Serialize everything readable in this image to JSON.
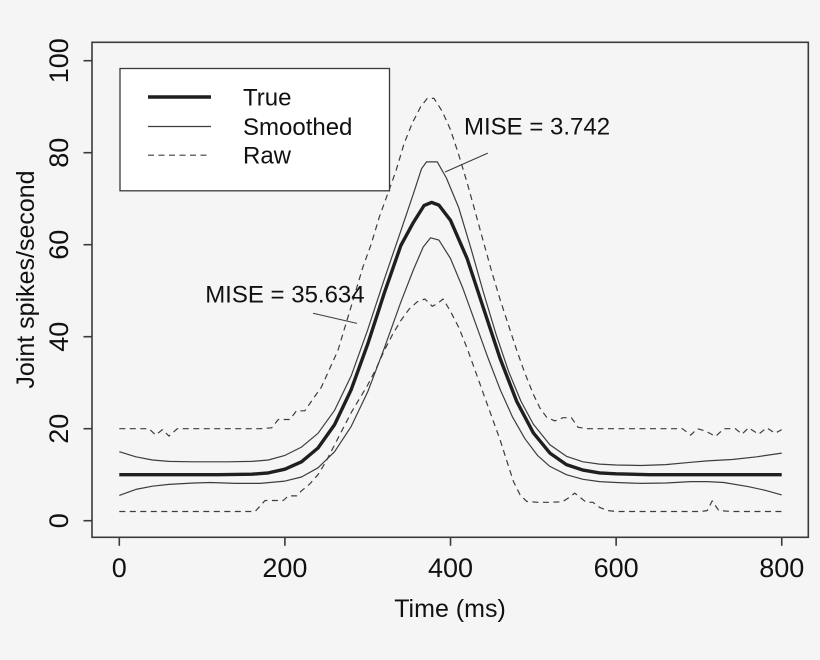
{
  "colors": {
    "background": "#f5f5f6",
    "legend_background": "#ffffff",
    "line_color": "#1f1f1f",
    "thin_line_color": "#3d3d3d",
    "border_color": "#3a3a3a",
    "text_color": "#111111"
  },
  "chart_data": {
    "type": "line",
    "title": "",
    "xlabel": "Time (ms)",
    "ylabel": "Joint spikes/second",
    "xlim": [
      0,
      800
    ],
    "ylim": [
      0,
      100
    ],
    "xticks": [
      0,
      200,
      400,
      600,
      800
    ],
    "yticks": [
      0,
      20,
      40,
      60,
      80,
      100
    ],
    "grid": false,
    "legend": {
      "position": "top-left",
      "entries": [
        {
          "label": "True",
          "style": "thick-solid"
        },
        {
          "label": "Smoothed",
          "style": "thin-solid"
        },
        {
          "label": "Raw",
          "style": "dashed"
        }
      ]
    },
    "series": [
      {
        "name": "true",
        "style": "thick-solid",
        "points": [
          [
            0,
            10
          ],
          [
            60,
            10
          ],
          [
            120,
            10
          ],
          [
            160,
            10.1
          ],
          [
            180,
            10.4
          ],
          [
            200,
            11.2
          ],
          [
            220,
            12.8
          ],
          [
            240,
            15.8
          ],
          [
            260,
            20.9
          ],
          [
            280,
            28.5
          ],
          [
            300,
            38.4
          ],
          [
            320,
            49.5
          ],
          [
            340,
            59.8
          ],
          [
            355,
            64.8
          ],
          [
            368,
            68.5
          ],
          [
            377,
            69.2
          ],
          [
            386,
            68.6
          ],
          [
            400,
            65.3
          ],
          [
            420,
            57
          ],
          [
            440,
            46.1
          ],
          [
            460,
            35.2
          ],
          [
            480,
            25.9
          ],
          [
            500,
            19.1
          ],
          [
            520,
            14.7
          ],
          [
            540,
            12.2
          ],
          [
            560,
            11
          ],
          [
            580,
            10.4
          ],
          [
            600,
            10.2
          ],
          [
            640,
            10
          ],
          [
            700,
            10
          ],
          [
            760,
            10
          ],
          [
            800,
            10
          ]
        ]
      },
      {
        "name": "smoothed-upper",
        "style": "thin-solid",
        "points": [
          [
            0,
            15
          ],
          [
            20,
            13.9
          ],
          [
            40,
            13.2
          ],
          [
            60,
            12.9
          ],
          [
            90,
            12.8
          ],
          [
            130,
            12.8
          ],
          [
            160,
            12.9
          ],
          [
            180,
            13.2
          ],
          [
            200,
            14.2
          ],
          [
            220,
            16
          ],
          [
            240,
            19
          ],
          [
            260,
            24
          ],
          [
            280,
            31.5
          ],
          [
            300,
            41.5
          ],
          [
            320,
            52.5
          ],
          [
            340,
            63
          ],
          [
            355,
            71
          ],
          [
            365,
            76.5
          ],
          [
            371,
            78
          ],
          [
            384,
            78
          ],
          [
            395,
            74.5
          ],
          [
            410,
            68
          ],
          [
            425,
            59
          ],
          [
            440,
            49.5
          ],
          [
            455,
            40.5
          ],
          [
            470,
            32.5
          ],
          [
            485,
            26
          ],
          [
            500,
            21
          ],
          [
            520,
            16.5
          ],
          [
            540,
            14
          ],
          [
            560,
            12.8
          ],
          [
            580,
            12.3
          ],
          [
            600,
            12.1
          ],
          [
            630,
            12
          ],
          [
            660,
            12.2
          ],
          [
            690,
            12.7
          ],
          [
            710,
            13
          ],
          [
            740,
            13.3
          ],
          [
            770,
            13.9
          ],
          [
            800,
            14.7
          ]
        ]
      },
      {
        "name": "smoothed-lower",
        "style": "thin-solid",
        "points": [
          [
            0,
            5.5
          ],
          [
            20,
            6.8
          ],
          [
            40,
            7.5
          ],
          [
            60,
            7.9
          ],
          [
            90,
            8.2
          ],
          [
            110,
            8.3
          ],
          [
            140,
            8.1
          ],
          [
            170,
            8.1
          ],
          [
            200,
            8.6
          ],
          [
            220,
            9.5
          ],
          [
            240,
            11.5
          ],
          [
            260,
            15
          ],
          [
            280,
            20.5
          ],
          [
            300,
            28
          ],
          [
            320,
            37.5
          ],
          [
            340,
            47.5
          ],
          [
            355,
            54.5
          ],
          [
            367,
            59.5
          ],
          [
            376,
            61.5
          ],
          [
            386,
            61
          ],
          [
            400,
            57
          ],
          [
            415,
            50.5
          ],
          [
            430,
            43
          ],
          [
            445,
            35.5
          ],
          [
            460,
            28.5
          ],
          [
            475,
            22.5
          ],
          [
            490,
            17.8
          ],
          [
            505,
            14.2
          ],
          [
            520,
            11.8
          ],
          [
            540,
            10
          ],
          [
            560,
            9
          ],
          [
            580,
            8.5
          ],
          [
            600,
            8.3
          ],
          [
            630,
            8.1
          ],
          [
            660,
            8.2
          ],
          [
            690,
            8.5
          ],
          [
            710,
            8.5
          ],
          [
            730,
            8.3
          ],
          [
            760,
            7.4
          ],
          [
            780,
            6.6
          ],
          [
            800,
            5.6
          ]
        ]
      },
      {
        "name": "raw-upper",
        "style": "dashed",
        "points": [
          [
            0,
            20
          ],
          [
            36,
            20
          ],
          [
            44,
            18.6
          ],
          [
            52,
            19.8
          ],
          [
            60,
            18.4
          ],
          [
            70,
            20
          ],
          [
            120,
            20
          ],
          [
            170,
            20
          ],
          [
            184,
            20.2
          ],
          [
            192,
            22
          ],
          [
            206,
            22
          ],
          [
            214,
            23.9
          ],
          [
            224,
            23.9
          ],
          [
            234,
            26.5
          ],
          [
            244,
            29
          ],
          [
            254,
            33
          ],
          [
            264,
            37
          ],
          [
            274,
            43
          ],
          [
            284,
            49
          ],
          [
            294,
            55
          ],
          [
            304,
            60
          ],
          [
            314,
            66
          ],
          [
            324,
            71
          ],
          [
            334,
            76
          ],
          [
            344,
            82
          ],
          [
            354,
            86.5
          ],
          [
            364,
            90
          ],
          [
            372,
            91.8
          ],
          [
            380,
            91.8
          ],
          [
            390,
            89
          ],
          [
            400,
            85
          ],
          [
            410,
            79.5
          ],
          [
            420,
            73.5
          ],
          [
            430,
            67
          ],
          [
            440,
            60.5
          ],
          [
            450,
            54
          ],
          [
            460,
            48
          ],
          [
            470,
            42.5
          ],
          [
            480,
            37
          ],
          [
            490,
            32
          ],
          [
            500,
            27.5
          ],
          [
            508,
            24.5
          ],
          [
            516,
            22.5
          ],
          [
            526,
            21.7
          ],
          [
            536,
            22.4
          ],
          [
            546,
            22.4
          ],
          [
            554,
            20.3
          ],
          [
            566,
            20
          ],
          [
            600,
            20
          ],
          [
            640,
            20
          ],
          [
            680,
            20
          ],
          [
            690,
            18.6
          ],
          [
            698,
            20
          ],
          [
            708,
            19.5
          ],
          [
            720,
            18.3
          ],
          [
            730,
            20
          ],
          [
            744,
            20
          ],
          [
            752,
            18.8
          ],
          [
            760,
            20.2
          ],
          [
            772,
            18.8
          ],
          [
            782,
            20.2
          ],
          [
            792,
            19
          ],
          [
            800,
            19.8
          ]
        ]
      },
      {
        "name": "raw-lower",
        "style": "dashed",
        "points": [
          [
            0,
            2
          ],
          [
            60,
            2
          ],
          [
            120,
            2
          ],
          [
            164,
            2
          ],
          [
            170,
            3.2
          ],
          [
            176,
            4.4
          ],
          [
            198,
            4.4
          ],
          [
            204,
            5.4
          ],
          [
            214,
            5.4
          ],
          [
            220,
            6.5
          ],
          [
            230,
            8
          ],
          [
            240,
            10
          ],
          [
            250,
            13
          ],
          [
            260,
            16.5
          ],
          [
            270,
            20
          ],
          [
            280,
            23.5
          ],
          [
            290,
            26.5
          ],
          [
            300,
            29.5
          ],
          [
            310,
            33
          ],
          [
            320,
            37
          ],
          [
            330,
            40.5
          ],
          [
            340,
            43.5
          ],
          [
            350,
            46
          ],
          [
            360,
            47.6
          ],
          [
            369,
            48.2
          ],
          [
            378,
            46.6
          ],
          [
            384,
            47.2
          ],
          [
            391,
            48.2
          ],
          [
            400,
            45.5
          ],
          [
            410,
            42
          ],
          [
            420,
            37.5
          ],
          [
            430,
            32.5
          ],
          [
            440,
            27.5
          ],
          [
            450,
            22.5
          ],
          [
            460,
            17.5
          ],
          [
            468,
            13
          ],
          [
            476,
            8.5
          ],
          [
            484,
            5.6
          ],
          [
            492,
            4.2
          ],
          [
            505,
            4
          ],
          [
            520,
            4
          ],
          [
            535,
            4.1
          ],
          [
            543,
            5
          ],
          [
            550,
            6
          ],
          [
            557,
            5
          ],
          [
            564,
            4
          ],
          [
            572,
            4
          ],
          [
            580,
            2.9
          ],
          [
            590,
            2.2
          ],
          [
            600,
            2
          ],
          [
            650,
            2
          ],
          [
            702,
            2
          ],
          [
            710,
            2.2
          ],
          [
            716,
            4.3
          ],
          [
            724,
            2.2
          ],
          [
            740,
            2
          ],
          [
            770,
            2
          ],
          [
            800,
            2
          ]
        ]
      }
    ],
    "annotations": [
      {
        "text": "MISE = 3.742",
        "x": 504.5,
        "y": 85.8,
        "leader": {
          "x1": 445,
          "y1": 79.9,
          "x2": 393.5,
          "y2": 75.8
        }
      },
      {
        "text": "MISE = 35.634",
        "x": 200,
        "y": 49.3,
        "leader": {
          "x1": 234,
          "y1": 45.1,
          "x2": 287,
          "y2": 42.9
        }
      }
    ]
  }
}
